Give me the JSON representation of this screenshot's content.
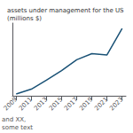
{
  "chart_data": {
    "type": "line",
    "title": "assets under management for the US (millions $)",
    "x": [
      2009,
      2011,
      2013,
      2015,
      2017,
      2019,
      2021,
      2023
    ],
    "values": [
      15,
      55,
      130,
      210,
      300,
      350,
      340,
      560
    ],
    "color": "#1a5276",
    "xlim": [
      2008.5,
      2023.5
    ],
    "xticks": [
      2009,
      2011,
      2013,
      2015,
      2017,
      2019,
      2021,
      2023
    ],
    "ylim": [
      0,
      604.8
    ],
    "yticks": [],
    "grid": false,
    "tick_labels": "x",
    "annotations": [
      "and XX,\nsome text"
    ]
  }
}
